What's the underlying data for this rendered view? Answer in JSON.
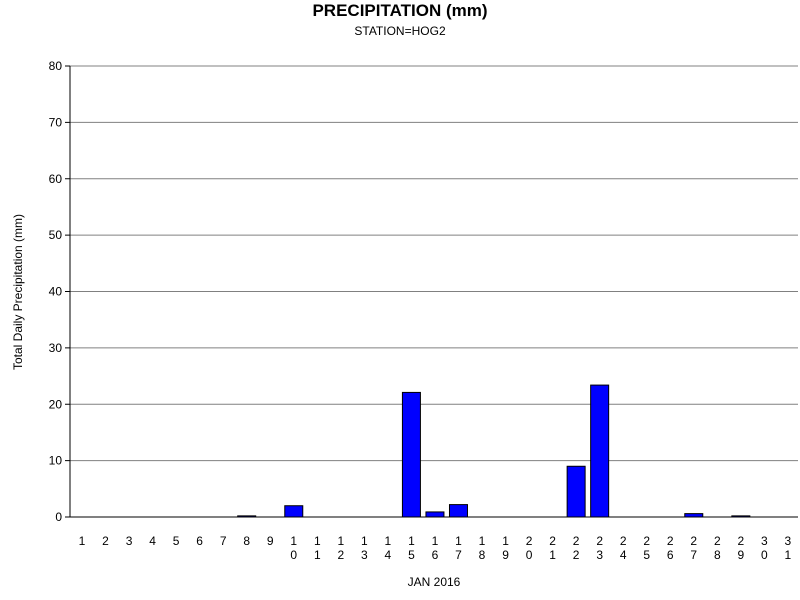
{
  "chart_data": {
    "type": "bar",
    "title": "PRECIPITATION (mm)",
    "subtitle": "STATION=HOG2",
    "xlabel": "JAN 2016",
    "ylabel": "Total Daily Precipitation (mm)",
    "ylim": [
      0,
      80
    ],
    "yticks": [
      0,
      10,
      20,
      30,
      40,
      50,
      60,
      70,
      80
    ],
    "grid": true,
    "categories": [
      "1",
      "2",
      "3",
      "4",
      "5",
      "6",
      "7",
      "8",
      "9",
      "10",
      "11",
      "12",
      "13",
      "14",
      "15",
      "16",
      "17",
      "18",
      "19",
      "20",
      "21",
      "22",
      "23",
      "24",
      "25",
      "26",
      "27",
      "28",
      "29",
      "30",
      "31"
    ],
    "values": [
      0,
      0,
      0,
      0,
      0,
      0,
      0,
      0.2,
      0,
      2.0,
      0,
      0,
      0,
      0,
      22.1,
      0.9,
      2.2,
      0,
      0,
      0,
      0,
      9.0,
      23.4,
      0,
      0,
      0,
      0.6,
      0,
      0.2,
      0,
      0
    ],
    "bar_color": "#0000ff",
    "bar_edge_color": "#000000",
    "grid_color": "#808080"
  }
}
